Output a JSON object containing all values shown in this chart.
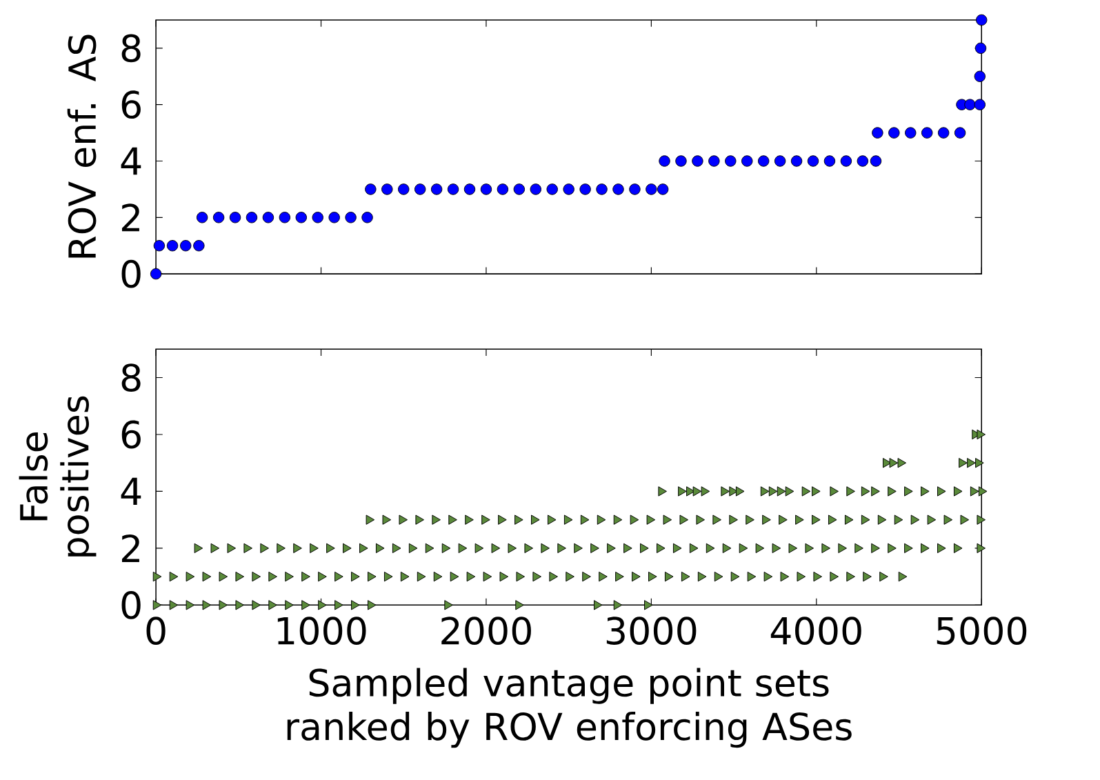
{
  "chart_data": [
    {
      "type": "scatter",
      "ylabel": "ROV enf. AS",
      "xlim": [
        0,
        5000
      ],
      "ylim": [
        0,
        9
      ],
      "xticks": [
        0,
        1000,
        2000,
        3000,
        4000,
        5000
      ],
      "yticks": [
        0,
        2,
        4,
        6,
        8
      ],
      "tick_labels": "y",
      "marker": "circle",
      "series": [
        {
          "color": "#0000ff",
          "x": [
            0,
            20,
            100,
            180,
            260,
            280,
            380,
            480,
            580,
            680,
            780,
            880,
            980,
            1080,
            1180,
            1280,
            1300,
            1400,
            1500,
            1600,
            1700,
            1800,
            1900,
            2000,
            2100,
            2200,
            2300,
            2400,
            2500,
            2600,
            2700,
            2800,
            2900,
            3000,
            3070,
            3080,
            3180,
            3280,
            3380,
            3480,
            3580,
            3680,
            3780,
            3880,
            3980,
            4080,
            4180,
            4280,
            4360,
            4370,
            4470,
            4570,
            4670,
            4770,
            4870,
            4880,
            4930,
            4990,
            4990,
            4995,
            5000
          ],
          "values": [
            0,
            1,
            1,
            1,
            1,
            2,
            2,
            2,
            2,
            2,
            2,
            2,
            2,
            2,
            2,
            2,
            3,
            3,
            3,
            3,
            3,
            3,
            3,
            3,
            3,
            3,
            3,
            3,
            3,
            3,
            3,
            3,
            3,
            3,
            3,
            4,
            4,
            4,
            4,
            4,
            4,
            4,
            4,
            4,
            4,
            4,
            4,
            4,
            4,
            5,
            5,
            5,
            5,
            5,
            5,
            6,
            6,
            6,
            7,
            8,
            9
          ]
        }
      ]
    },
    {
      "type": "scatter",
      "ylabel": "False positives",
      "xlabel": "Sampled vantage point sets ranked by ROV enforcing ASes",
      "xlim": [
        0,
        5000
      ],
      "ylim": [
        0,
        9
      ],
      "xticks": [
        0,
        1000,
        2000,
        3000,
        4000,
        5000
      ],
      "yticks": [
        0,
        2,
        4,
        6,
        8
      ],
      "marker": "triangle",
      "series": [
        {
          "color": "#5a8a3a",
          "x": [
            0,
            100,
            200,
            300,
            400,
            500,
            600,
            700,
            800,
            900,
            1000,
            1100,
            1200,
            1300,
            1765,
            2195,
            2670,
            2790,
            2975,
            0,
            100,
            200,
            300,
            400,
            500,
            600,
            700,
            800,
            900,
            1000,
            1100,
            1200,
            1300,
            1400,
            1500,
            1600,
            1700,
            1800,
            1900,
            2000,
            2100,
            2200,
            2300,
            2400,
            2500,
            2600,
            2700,
            2800,
            2900,
            3000,
            3100,
            3200,
            3300,
            3400,
            3500,
            3600,
            3700,
            3800,
            3900,
            4000,
            4100,
            4200,
            4300,
            4400,
            4515,
            250,
            350,
            450,
            550,
            650,
            750,
            850,
            950,
            1050,
            1150,
            1250,
            1350,
            1450,
            1550,
            1650,
            1750,
            1850,
            1950,
            2050,
            2150,
            2250,
            2350,
            2450,
            2550,
            2650,
            2750,
            2850,
            2950,
            3050,
            3150,
            3250,
            3350,
            3450,
            3550,
            3650,
            3750,
            3850,
            3950,
            4050,
            4150,
            4250,
            4350,
            4450,
            4550,
            4650,
            4750,
            4850,
            4990,
            1290,
            1390,
            1490,
            1590,
            1690,
            1790,
            1890,
            1990,
            2090,
            2190,
            2290,
            2390,
            2490,
            2590,
            2690,
            2790,
            2890,
            2990,
            3090,
            3190,
            3290,
            3390,
            3490,
            3590,
            3690,
            3790,
            3890,
            3990,
            4090,
            4190,
            4290,
            4390,
            4490,
            4590,
            4690,
            4790,
            4890,
            4990,
            3060,
            3180,
            3230,
            3270,
            3320,
            3440,
            3490,
            3530,
            3680,
            3730,
            3780,
            3830,
            3930,
            3990,
            4100,
            4200,
            4290,
            4350,
            4450,
            4550,
            4650,
            4750,
            4850,
            4950,
            5000,
            4420,
            4460,
            4510,
            4880,
            4930,
            4980,
            4960,
            4990
          ],
          "values": [
            0,
            0,
            0,
            0,
            0,
            0,
            0,
            0,
            0,
            0,
            0,
            0,
            0,
            0,
            0,
            0,
            0,
            0,
            0,
            1,
            1,
            1,
            1,
            1,
            1,
            1,
            1,
            1,
            1,
            1,
            1,
            1,
            1,
            1,
            1,
            1,
            1,
            1,
            1,
            1,
            1,
            1,
            1,
            1,
            1,
            1,
            1,
            1,
            1,
            1,
            1,
            1,
            1,
            1,
            1,
            1,
            1,
            1,
            1,
            1,
            1,
            1,
            1,
            1,
            1,
            2,
            2,
            2,
            2,
            2,
            2,
            2,
            2,
            2,
            2,
            2,
            2,
            2,
            2,
            2,
            2,
            2,
            2,
            2,
            2,
            2,
            2,
            2,
            2,
            2,
            2,
            2,
            2,
            2,
            2,
            2,
            2,
            2,
            2,
            2,
            2,
            2,
            2,
            2,
            2,
            2,
            2,
            2,
            2,
            2,
            2,
            2,
            2,
            3,
            3,
            3,
            3,
            3,
            3,
            3,
            3,
            3,
            3,
            3,
            3,
            3,
            3,
            3,
            3,
            3,
            3,
            3,
            3,
            3,
            3,
            3,
            3,
            3,
            3,
            3,
            3,
            3,
            3,
            3,
            3,
            3,
            3,
            3,
            3,
            3,
            3,
            4,
            4,
            4,
            4,
            4,
            4,
            4,
            4,
            4,
            4,
            4,
            4,
            4,
            4,
            4,
            4,
            4,
            4,
            4,
            4,
            4,
            4,
            4,
            4,
            4,
            5,
            5,
            5,
            5,
            5,
            5,
            6,
            6
          ]
        }
      ]
    }
  ]
}
